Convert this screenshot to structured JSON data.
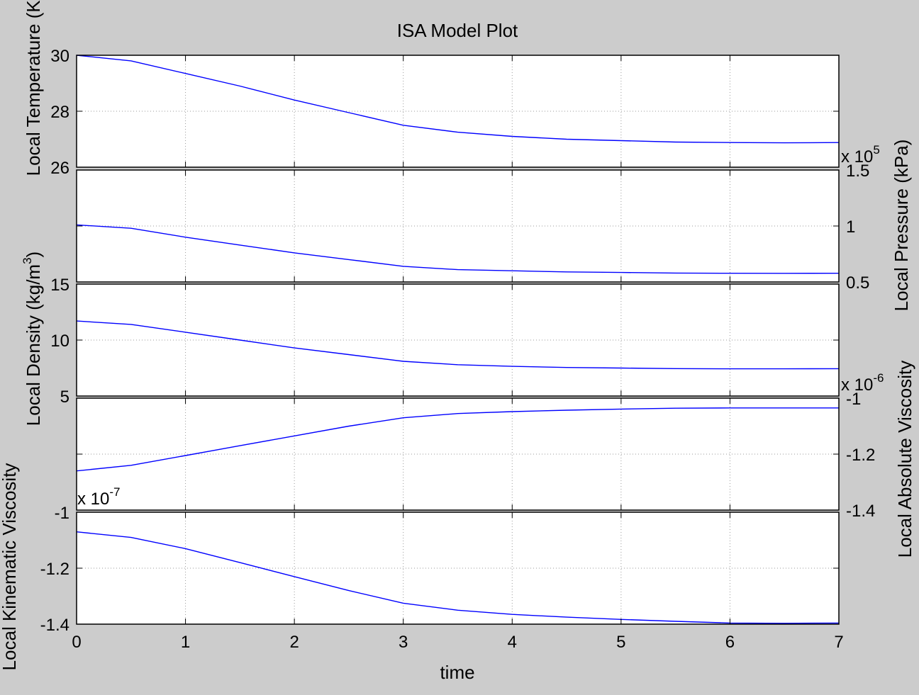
{
  "chart_data": {
    "type": "line",
    "title": "ISA Model Plot",
    "xlabel": "time",
    "xlim": [
      0,
      7
    ],
    "xticks": [
      0,
      1,
      2,
      3,
      4,
      5,
      6,
      7
    ],
    "grid": true,
    "line_color": "#0000ff",
    "panels": [
      {
        "name": "temperature",
        "ylabel": "Local Temperature (K)",
        "ylabel_side": "left",
        "ylim": [
          26,
          30
        ],
        "yticks": [
          {
            "v": 30,
            "t": "30"
          },
          {
            "v": 28,
            "t": "28"
          },
          {
            "v": 26,
            "t": "26"
          }
        ],
        "tick_side": "left",
        "multiplier": null,
        "x": [
          0,
          0.5,
          1,
          1.5,
          2,
          2.5,
          3,
          3.5,
          4,
          4.5,
          5,
          5.5,
          6,
          6.5,
          7
        ],
        "y": [
          30.0,
          29.8,
          29.35,
          28.9,
          28.4,
          27.95,
          27.5,
          27.25,
          27.1,
          27.0,
          26.95,
          26.9,
          26.88,
          26.87,
          26.88
        ]
      },
      {
        "name": "pressure",
        "ylabel": "Local Pressure (kPa)",
        "ylabel_side": "right",
        "ylim": [
          0.5,
          1.5
        ],
        "yticks": [
          {
            "v": 1.5,
            "t": "1.5"
          },
          {
            "v": 1,
            "t": "1"
          },
          {
            "v": 0.5,
            "t": "0.5"
          }
        ],
        "tick_side": "right",
        "multiplier": {
          "base": "x 10",
          "exp": "5",
          "corner": "top-right"
        },
        "x": [
          0,
          0.5,
          1,
          1.5,
          2,
          2.5,
          3,
          3.5,
          4,
          4.5,
          5,
          5.5,
          6,
          6.5,
          7
        ],
        "y": [
          1.01,
          0.98,
          0.9,
          0.83,
          0.76,
          0.7,
          0.64,
          0.61,
          0.6,
          0.59,
          0.585,
          0.58,
          0.578,
          0.577,
          0.578
        ]
      },
      {
        "name": "density",
        "ylabel": "Local Density (kg/m",
        "ylabel_sup": "3",
        "ylabel_tail": ")",
        "ylabel_side": "left",
        "ylim": [
          5,
          15
        ],
        "yticks": [
          {
            "v": 15,
            "t": "15"
          },
          {
            "v": 10,
            "t": "10"
          },
          {
            "v": 5,
            "t": "5"
          }
        ],
        "tick_side": "left",
        "multiplier": null,
        "x": [
          0,
          0.5,
          1,
          1.5,
          2,
          2.5,
          3,
          3.5,
          4,
          4.5,
          5,
          5.5,
          6,
          6.5,
          7
        ],
        "y": [
          11.7,
          11.4,
          10.7,
          10.0,
          9.3,
          8.7,
          8.1,
          7.8,
          7.65,
          7.55,
          7.5,
          7.45,
          7.43,
          7.43,
          7.44
        ]
      },
      {
        "name": "absolute-viscosity",
        "ylabel": "Local Absolute Viscosity",
        "ylabel_side": "right",
        "ylim": [
          -1.4,
          -1.0
        ],
        "yticks": [
          {
            "v": -1.0,
            "t": "-1"
          },
          {
            "v": -1.2,
            "t": "-1.2"
          },
          {
            "v": -1.4,
            "t": "-1.4"
          }
        ],
        "tick_side": "right",
        "multiplier": {
          "base": "x 10",
          "exp": "-6",
          "corner": "top-right"
        },
        "x": [
          0,
          0.5,
          1,
          1.5,
          2,
          2.5,
          3,
          3.5,
          4,
          4.5,
          5,
          5.5,
          6,
          6.5,
          7
        ],
        "y": [
          -1.26,
          -1.24,
          -1.205,
          -1.17,
          -1.135,
          -1.1,
          -1.07,
          -1.055,
          -1.048,
          -1.043,
          -1.039,
          -1.036,
          -1.035,
          -1.035,
          -1.035
        ]
      },
      {
        "name": "kinematic-viscosity",
        "ylabel": "Local Kinematic Viscosity",
        "ylabel_side": "left",
        "ylim": [
          -1.4,
          -1.0
        ],
        "yticks": [
          {
            "v": -1.0,
            "t": "-1"
          },
          {
            "v": -1.2,
            "t": "-1.2"
          },
          {
            "v": -1.4,
            "t": "-1.4"
          }
        ],
        "tick_side": "left",
        "multiplier": {
          "base": "x 10",
          "exp": "-7",
          "corner": "top-left"
        },
        "x": [
          0,
          0.5,
          1,
          1.5,
          2,
          2.5,
          3,
          3.5,
          4,
          4.5,
          5,
          5.5,
          6,
          6.5,
          7
        ],
        "y": [
          -1.07,
          -1.09,
          -1.13,
          -1.18,
          -1.23,
          -1.28,
          -1.325,
          -1.35,
          -1.365,
          -1.375,
          -1.383,
          -1.39,
          -1.396,
          -1.397,
          -1.396
        ]
      }
    ]
  }
}
